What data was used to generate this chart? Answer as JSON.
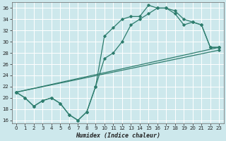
{
  "xlabel": "Humidex (Indice chaleur)",
  "xlim": [
    -0.5,
    23.5
  ],
  "ylim": [
    15.5,
    37
  ],
  "yticks": [
    16,
    18,
    20,
    22,
    24,
    26,
    28,
    30,
    32,
    34,
    36
  ],
  "xticks": [
    0,
    1,
    2,
    3,
    4,
    5,
    6,
    7,
    8,
    9,
    10,
    11,
    12,
    13,
    14,
    15,
    16,
    17,
    18,
    19,
    20,
    21,
    22,
    23
  ],
  "bg_color": "#cde8ec",
  "grid_color": "#ffffff",
  "line_color": "#2e7d6e",
  "curve1_x": [
    0,
    1,
    2,
    3,
    4,
    5,
    6,
    7,
    8,
    9,
    10,
    11,
    12,
    13,
    14,
    15,
    16,
    17,
    18,
    19,
    20,
    21,
    22,
    23
  ],
  "curve1_y": [
    21,
    20,
    18.5,
    19.5,
    20,
    19,
    17,
    16,
    17.5,
    22,
    31,
    32.5,
    34,
    34.5,
    34.5,
    36.5,
    36,
    36,
    35,
    33,
    33.5,
    33,
    29,
    29
  ],
  "curve2_x": [
    0,
    1,
    2,
    3,
    4,
    5,
    6,
    7,
    8,
    9,
    10,
    11,
    12,
    13,
    14,
    15,
    16,
    17,
    18,
    19,
    20,
    21,
    22,
    23
  ],
  "curve2_y": [
    21,
    20,
    18.5,
    19.5,
    20,
    19,
    17,
    16,
    17.5,
    22,
    27,
    28,
    30,
    33,
    34,
    35,
    36,
    36,
    35.5,
    34,
    33.5,
    33,
    29,
    29
  ],
  "line1_x": [
    0,
    23
  ],
  "line1_y": [
    21,
    29
  ],
  "line2_x": [
    0,
    23
  ],
  "line2_y": [
    21,
    28.5
  ]
}
